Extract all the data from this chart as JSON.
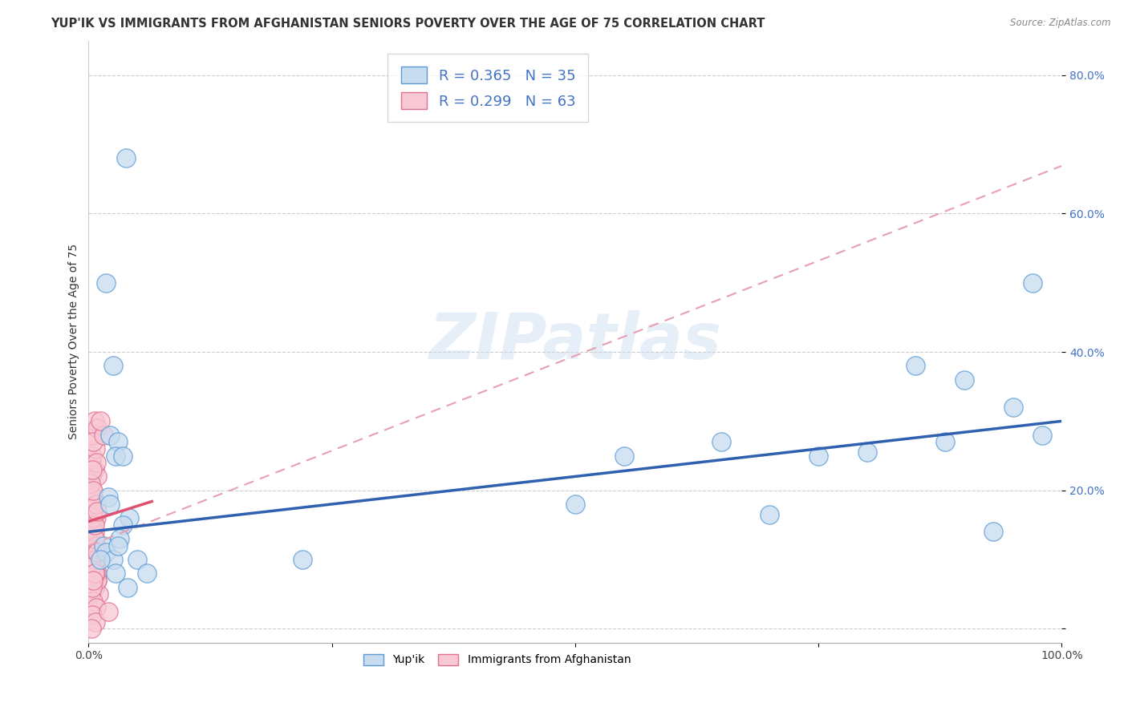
{
  "title": "YUP'IK VS IMMIGRANTS FROM AFGHANISTAN SENIORS POVERTY OVER THE AGE OF 75 CORRELATION CHART",
  "source": "Source: ZipAtlas.com",
  "ylabel": "Seniors Poverty Over the Age of 75",
  "xlim": [
    0,
    1.0
  ],
  "ylim": [
    -0.02,
    0.85
  ],
  "watermark": "ZIPatlas",
  "color_yupik_fill": "#c8dcf0",
  "color_yupik_edge": "#5b9bd5",
  "color_afghanistan_fill": "#f8c8d4",
  "color_afghanistan_edge": "#e07090",
  "color_yupik_line": "#3060b0",
  "color_afghanistan_line": "#e05070",
  "color_dashed_line": "#e8a0b0",
  "grid_color": "#cccccc",
  "background_color": "#ffffff",
  "title_fontsize": 10.5,
  "axis_label_fontsize": 10,
  "tick_fontsize": 10,
  "legend_fontsize": 13,
  "yupik_x": [
    0.018,
    0.025,
    0.022,
    0.03,
    0.038,
    0.028,
    0.015,
    0.042,
    0.02,
    0.035,
    0.018,
    0.025,
    0.032,
    0.022,
    0.012,
    0.028,
    0.035,
    0.5,
    0.55,
    0.65,
    0.7,
    0.75,
    0.8,
    0.85,
    0.9,
    0.95,
    0.97,
    0.98,
    0.93,
    0.88,
    0.22,
    0.05,
    0.06,
    0.04,
    0.03
  ],
  "yupik_y": [
    0.5,
    0.38,
    0.28,
    0.27,
    0.68,
    0.25,
    0.12,
    0.16,
    0.19,
    0.15,
    0.11,
    0.1,
    0.13,
    0.18,
    0.1,
    0.08,
    0.25,
    0.18,
    0.25,
    0.27,
    0.165,
    0.25,
    0.255,
    0.38,
    0.36,
    0.32,
    0.5,
    0.28,
    0.14,
    0.27,
    0.1,
    0.1,
    0.08,
    0.06,
    0.12
  ],
  "afghanistan_x": [
    0.003,
    0.005,
    0.007,
    0.004,
    0.006,
    0.008,
    0.002,
    0.005,
    0.009,
    0.003,
    0.006,
    0.01,
    0.004,
    0.007,
    0.003,
    0.005,
    0.008,
    0.006,
    0.004,
    0.007,
    0.009,
    0.003,
    0.006,
    0.005,
    0.008,
    0.004,
    0.007,
    0.003,
    0.006,
    0.009,
    0.002,
    0.005,
    0.008,
    0.004,
    0.007,
    0.003,
    0.006,
    0.009,
    0.005,
    0.008,
    0.004,
    0.007,
    0.003,
    0.006,
    0.009,
    0.002,
    0.005,
    0.004,
    0.007,
    0.003,
    0.006,
    0.009,
    0.005,
    0.008,
    0.004,
    0.007,
    0.003,
    0.006,
    0.009,
    0.005,
    0.015,
    0.012,
    0.02
  ],
  "afghanistan_y": [
    0.14,
    0.13,
    0.12,
    0.16,
    0.11,
    0.1,
    0.08,
    0.09,
    0.07,
    0.15,
    0.06,
    0.05,
    0.12,
    0.11,
    0.18,
    0.17,
    0.16,
    0.13,
    0.1,
    0.09,
    0.08,
    0.19,
    0.14,
    0.16,
    0.12,
    0.2,
    0.11,
    0.22,
    0.13,
    0.07,
    0.05,
    0.04,
    0.03,
    0.06,
    0.08,
    0.24,
    0.23,
    0.22,
    0.19,
    0.18,
    0.02,
    0.01,
    0.0,
    0.15,
    0.17,
    0.21,
    0.2,
    0.25,
    0.26,
    0.28,
    0.3,
    0.29,
    0.27,
    0.24,
    0.23,
    0.1,
    0.09,
    0.08,
    0.11,
    0.07,
    0.28,
    0.3,
    0.025
  ],
  "yupik_trend": [
    0.14,
    0.3
  ],
  "afg_solid_trend": [
    0.155,
    0.6
  ],
  "afg_dashed_trend_x": [
    0.0,
    1.02
  ],
  "afg_dashed_trend_y": [
    0.12,
    0.68
  ]
}
